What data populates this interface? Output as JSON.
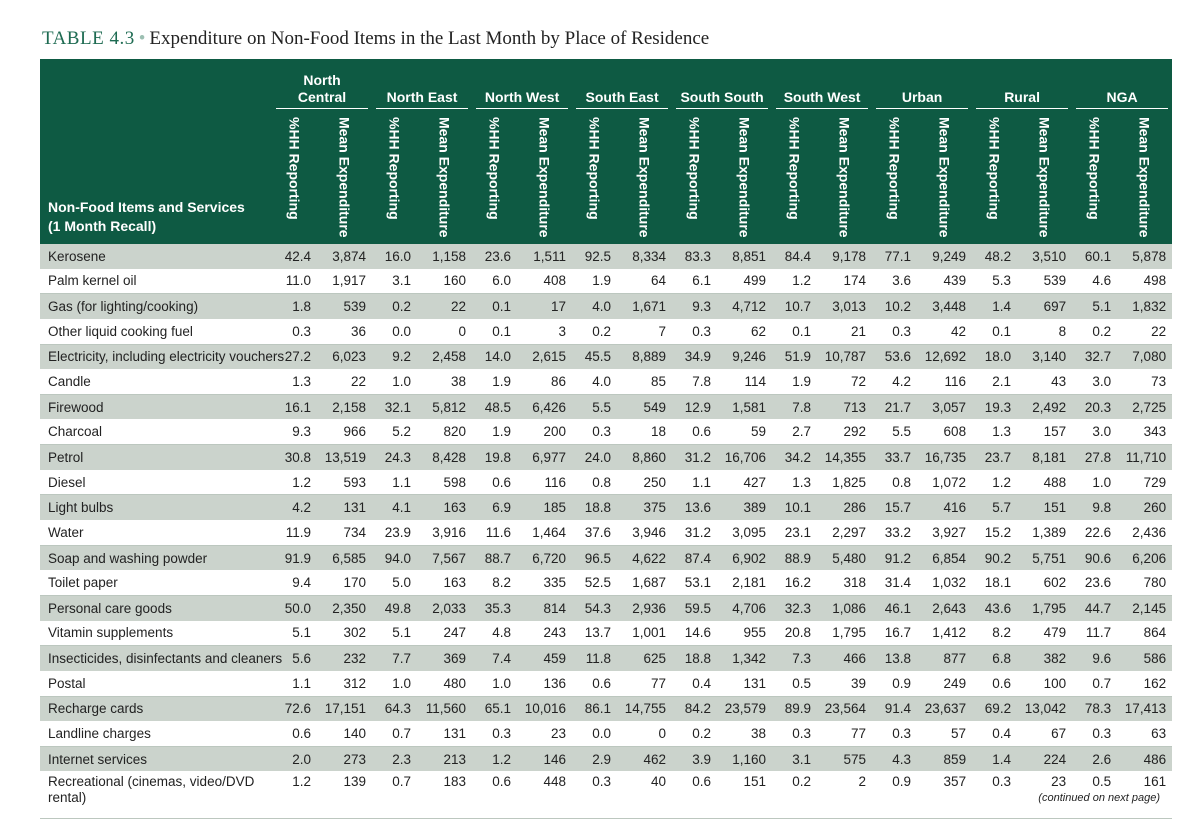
{
  "title": {
    "label": "TABLE 4.3",
    "text": "Expenditure on Non-Food Items in the Last Month by Place of Residence"
  },
  "header": {
    "corner_line1": "Non-Food Items and Services",
    "corner_line2": "(1 Month Recall)",
    "groups": [
      "North Central",
      "North East",
      "North West",
      "South East",
      "South South",
      "South West",
      "Urban",
      "Rural",
      "NGA"
    ],
    "group_first_line1": "North",
    "group_first_line2": "Central",
    "sub1": "%HH Reporting",
    "sub2": "Mean Expenditure"
  },
  "rows": [
    {
      "item": "Kerosene",
      "values": [
        "42.4",
        "3,874",
        "16.0",
        "1,158",
        "23.6",
        "1,511",
        "92.5",
        "8,334",
        "83.3",
        "8,851",
        "84.4",
        "9,178",
        "77.1",
        "9,249",
        "48.2",
        "3,510",
        "60.1",
        "5,878"
      ]
    },
    {
      "item": "Palm kernel oil",
      "values": [
        "11.0",
        "1,917",
        "3.1",
        "160",
        "6.0",
        "408",
        "1.9",
        "64",
        "6.1",
        "499",
        "1.2",
        "174",
        "3.6",
        "439",
        "5.3",
        "539",
        "4.6",
        "498"
      ]
    },
    {
      "item": "Gas (for lighting/cooking)",
      "values": [
        "1.8",
        "539",
        "0.2",
        "22",
        "0.1",
        "17",
        "4.0",
        "1,671",
        "9.3",
        "4,712",
        "10.7",
        "3,013",
        "10.2",
        "3,448",
        "1.4",
        "697",
        "5.1",
        "1,832"
      ]
    },
    {
      "item": "Other liquid cooking fuel",
      "values": [
        "0.3",
        "36",
        "0.0",
        "0",
        "0.1",
        "3",
        "0.2",
        "7",
        "0.3",
        "62",
        "0.1",
        "21",
        "0.3",
        "42",
        "0.1",
        "8",
        "0.2",
        "22"
      ]
    },
    {
      "item": "Electricity, including electricity vouchers",
      "values": [
        "27.2",
        "6,023",
        "9.2",
        "2,458",
        "14.0",
        "2,615",
        "45.5",
        "8,889",
        "34.9",
        "9,246",
        "51.9",
        "10,787",
        "53.6",
        "12,692",
        "18.0",
        "3,140",
        "32.7",
        "7,080"
      ]
    },
    {
      "item": "Candle",
      "values": [
        "1.3",
        "22",
        "1.0",
        "38",
        "1.9",
        "86",
        "4.0",
        "85",
        "7.8",
        "114",
        "1.9",
        "72",
        "4.2",
        "116",
        "2.1",
        "43",
        "3.0",
        "73"
      ]
    },
    {
      "item": "Firewood",
      "values": [
        "16.1",
        "2,158",
        "32.1",
        "5,812",
        "48.5",
        "6,426",
        "5.5",
        "549",
        "12.9",
        "1,581",
        "7.8",
        "713",
        "21.7",
        "3,057",
        "19.3",
        "2,492",
        "20.3",
        "2,725"
      ]
    },
    {
      "item": "Charcoal",
      "values": [
        "9.3",
        "966",
        "5.2",
        "820",
        "1.9",
        "200",
        "0.3",
        "18",
        "0.6",
        "59",
        "2.7",
        "292",
        "5.5",
        "608",
        "1.3",
        "157",
        "3.0",
        "343"
      ]
    },
    {
      "item": "Petrol",
      "values": [
        "30.8",
        "13,519",
        "24.3",
        "8,428",
        "19.8",
        "6,977",
        "24.0",
        "8,860",
        "31.2",
        "16,706",
        "34.2",
        "14,355",
        "33.7",
        "16,735",
        "23.7",
        "8,181",
        "27.8",
        "11,710"
      ]
    },
    {
      "item": "Diesel",
      "values": [
        "1.2",
        "593",
        "1.1",
        "598",
        "0.6",
        "116",
        "0.8",
        "250",
        "1.1",
        "427",
        "1.3",
        "1,825",
        "0.8",
        "1,072",
        "1.2",
        "488",
        "1.0",
        "729"
      ]
    },
    {
      "item": "Light bulbs",
      "values": [
        "4.2",
        "131",
        "4.1",
        "163",
        "6.9",
        "185",
        "18.8",
        "375",
        "13.6",
        "389",
        "10.1",
        "286",
        "15.7",
        "416",
        "5.7",
        "151",
        "9.8",
        "260"
      ]
    },
    {
      "item": "Water",
      "values": [
        "11.9",
        "734",
        "23.9",
        "3,916",
        "11.6",
        "1,464",
        "37.6",
        "3,946",
        "31.2",
        "3,095",
        "23.1",
        "2,297",
        "33.2",
        "3,927",
        "15.2",
        "1,389",
        "22.6",
        "2,436"
      ]
    },
    {
      "item": "Soap and washing powder",
      "values": [
        "91.9",
        "6,585",
        "94.0",
        "7,567",
        "88.7",
        "6,720",
        "96.5",
        "4,622",
        "87.4",
        "6,902",
        "88.9",
        "5,480",
        "91.2",
        "6,854",
        "90.2",
        "5,751",
        "90.6",
        "6,206"
      ]
    },
    {
      "item": "Toilet paper",
      "values": [
        "9.4",
        "170",
        "5.0",
        "163",
        "8.2",
        "335",
        "52.5",
        "1,687",
        "53.1",
        "2,181",
        "16.2",
        "318",
        "31.4",
        "1,032",
        "18.1",
        "602",
        "23.6",
        "780"
      ]
    },
    {
      "item": "Personal care goods",
      "values": [
        "50.0",
        "2,350",
        "49.8",
        "2,033",
        "35.3",
        "814",
        "54.3",
        "2,936",
        "59.5",
        "4,706",
        "32.3",
        "1,086",
        "46.1",
        "2,643",
        "43.6",
        "1,795",
        "44.7",
        "2,145"
      ]
    },
    {
      "item": "Vitamin supplements",
      "values": [
        "5.1",
        "302",
        "5.1",
        "247",
        "4.8",
        "243",
        "13.7",
        "1,001",
        "14.6",
        "955",
        "20.8",
        "1,795",
        "16.7",
        "1,412",
        "8.2",
        "479",
        "11.7",
        "864"
      ]
    },
    {
      "item": "Insecticides, disinfectants and cleaners",
      "values": [
        "5.6",
        "232",
        "7.7",
        "369",
        "7.4",
        "459",
        "11.8",
        "625",
        "18.8",
        "1,342",
        "7.3",
        "466",
        "13.8",
        "877",
        "6.8",
        "382",
        "9.6",
        "586"
      ]
    },
    {
      "item": "Postal",
      "values": [
        "1.1",
        "312",
        "1.0",
        "480",
        "1.0",
        "136",
        "0.6",
        "77",
        "0.4",
        "131",
        "0.5",
        "39",
        "0.9",
        "249",
        "0.6",
        "100",
        "0.7",
        "162"
      ]
    },
    {
      "item": "Recharge cards",
      "values": [
        "72.6",
        "17,151",
        "64.3",
        "11,560",
        "65.1",
        "10,016",
        "86.1",
        "14,755",
        "84.2",
        "23,579",
        "89.9",
        "23,564",
        "91.4",
        "23,637",
        "69.2",
        "13,042",
        "78.3",
        "17,413"
      ]
    },
    {
      "item": "Landline charges",
      "values": [
        "0.6",
        "140",
        "0.7",
        "131",
        "0.3",
        "23",
        "0.0",
        "0",
        "0.2",
        "38",
        "0.3",
        "77",
        "0.3",
        "57",
        "0.4",
        "67",
        "0.3",
        "63"
      ]
    },
    {
      "item": "Internet services",
      "values": [
        "2.0",
        "273",
        "2.3",
        "213",
        "1.2",
        "146",
        "2.9",
        "462",
        "3.9",
        "1,160",
        "3.1",
        "575",
        "4.3",
        "859",
        "1.4",
        "224",
        "2.6",
        "486"
      ]
    },
    {
      "item": "Recreational (cinemas, video/DVD rental)",
      "values": [
        "1.2",
        "139",
        "0.7",
        "183",
        "0.6",
        "448",
        "0.3",
        "40",
        "0.6",
        "151",
        "0.2",
        "2",
        "0.9",
        "357",
        "0.3",
        "23",
        "0.5",
        "161"
      ]
    }
  ],
  "footer": {
    "continued": "(continued on next page)"
  },
  "colors": {
    "header_bg": "#0e5a43",
    "title_accent": "#1e6b52",
    "stripe": "#cbd3cc"
  }
}
